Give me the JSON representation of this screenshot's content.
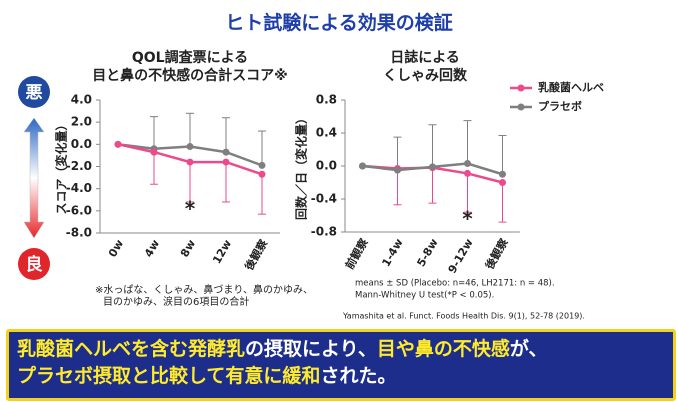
{
  "title": "ヒト試験による効果の検証",
  "scale": {
    "bad": "悪",
    "good": "良"
  },
  "citation": "Yamashita et al. Funct. Foods Health Dis. 9(1), 52-78 (2019).",
  "conclusion": [
    [
      {
        "text": "乳酸菌ヘルベを含む発酵乳",
        "highlight": true
      },
      {
        "text": "の摂取により、",
        "highlight": false
      },
      {
        "text": "目や鼻の不快感",
        "highlight": true
      },
      {
        "text": "が、",
        "highlight": false
      }
    ],
    [
      {
        "text": "プラセボ摂取と比較して有意に緩和",
        "highlight": true
      },
      {
        "text": "された。",
        "highlight": false
      }
    ]
  ],
  "chart_data": [
    {
      "type": "line",
      "title": [
        "QOL調査票による",
        "目と鼻の不快感の合計スコア※"
      ],
      "y_label": "スコア（変化量）",
      "categories": [
        "0w",
        "4w",
        "8w",
        "12w",
        "後観察"
      ],
      "ylim": [
        -8,
        4
      ],
      "yticks": [
        {
          "value": -8,
          "label": "-8.0"
        },
        {
          "value": -6,
          "label": "-6.0"
        },
        {
          "value": -4,
          "label": "-4.0"
        },
        {
          "value": -2,
          "label": "-2.0"
        },
        {
          "value": 0,
          "label": "0.0"
        },
        {
          "value": 2,
          "label": "2.0"
        },
        {
          "value": 4,
          "label": "4.0"
        }
      ],
      "series": [
        {
          "color": "#7f7f7f",
          "values": [
            0,
            -0.4,
            -0.2,
            -0.7,
            -1.9
          ],
          "errors": [
            null,
            2.9,
            3.0,
            3.1,
            3.1
          ],
          "error_side": "up"
        },
        {
          "color": "#ec4a8c",
          "values": [
            0,
            -0.7,
            -1.6,
            -1.6,
            -2.7
          ],
          "errors": [
            null,
            2.9,
            3.6,
            3.6,
            3.6
          ],
          "error_side": "down"
        }
      ],
      "annotations": [
        {
          "text": "*",
          "category": "8w"
        }
      ],
      "notes": [
        "※水っぱな、くしゃみ、鼻づまり、鼻のかゆみ、",
        "目のかゆみ、涙目の6項目の合計"
      ]
    },
    {
      "type": "line",
      "title": [
        "日誌による",
        "くしゃみ回数"
      ],
      "y_label": "回数／日（変化量）",
      "categories": [
        "前観察",
        "1-4w",
        "5-8w",
        "9-12w",
        "後観察"
      ],
      "ylim": [
        -0.8,
        0.8
      ],
      "yticks": [
        -0.8,
        -0.4,
        {
          "value": 0,
          "label": "0.0"
        },
        0.4,
        0.8
      ],
      "series": [
        {
          "name": "乳酸菌ヘルベ",
          "color": "#ec4a8c",
          "values": [
            0,
            -0.03,
            -0.02,
            -0.09,
            -0.2
          ],
          "errors": [
            null,
            0.44,
            0.43,
            0.47,
            0.48
          ],
          "error_side": "down"
        },
        {
          "name": "プラセボ",
          "color": "#7f7f7f",
          "values": [
            0,
            -0.05,
            -0.01,
            0.03,
            -0.1
          ],
          "errors": [
            null,
            0.4,
            0.51,
            0.52,
            0.47
          ],
          "error_side": "up"
        }
      ],
      "legend": "top-right",
      "annotations": [
        {
          "text": "*",
          "category": "9-12w"
        }
      ],
      "notes": [
        "means ± SD (Placebo: n=46, LH2171: n = 48).",
        "Mann-Whitney U test(*P < 0.05)."
      ]
    }
  ]
}
